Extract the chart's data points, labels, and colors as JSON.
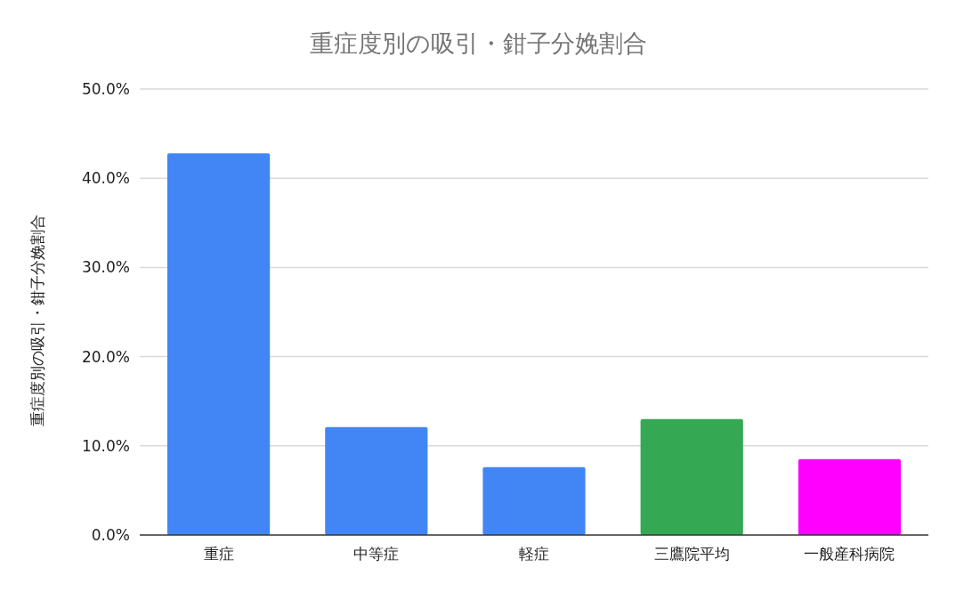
{
  "chart_data": {
    "type": "bar",
    "title": "重症度別の吸引・鉗子分娩割合",
    "ylabel": "重症度別の吸引・鉗子分娩割合",
    "categories": [
      "重症",
      "中等症",
      "軽症",
      "三鷹院平均",
      "一般産科病院"
    ],
    "values": [
      42.8,
      12.1,
      7.6,
      13.0,
      8.5
    ],
    "colors": [
      "#4285f4",
      "#4285f4",
      "#4285f4",
      "#34a853",
      "#ff00ff"
    ],
    "ylim": [
      0,
      50
    ],
    "yticks": [
      {
        "value": 0,
        "label": "0.0%"
      },
      {
        "value": 10,
        "label": "10.0%"
      },
      {
        "value": 20,
        "label": "20.0%"
      },
      {
        "value": 30,
        "label": "30.0%"
      },
      {
        "value": 40,
        "label": "40.0%"
      },
      {
        "value": 50,
        "label": "50.0%"
      }
    ],
    "grid": "y"
  }
}
